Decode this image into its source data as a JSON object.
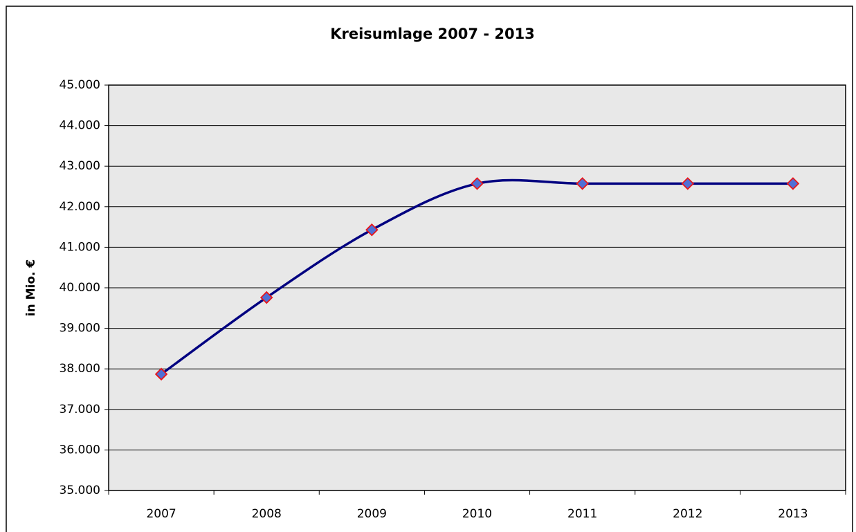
{
  "chart_data": {
    "type": "line",
    "title": "Kreisumlage 2007  - 2013",
    "y_label": "in Mio. €",
    "categories": [
      "2007",
      "2008",
      "2009",
      "2010",
      "2011",
      "2012",
      "2013"
    ],
    "series": [
      {
        "name": "Kreisumlage",
        "color": "#000080",
        "marker_fill": "#4f6fd6",
        "marker_edge": "#e8161b",
        "values": [
          37870,
          39760,
          41430,
          42570,
          42570,
          42570,
          42570
        ]
      }
    ],
    "ylim": [
      35000,
      45000
    ],
    "yticks": [
      {
        "value": 35000,
        "label": "35.000"
      },
      {
        "value": 36000,
        "label": "36.000"
      },
      {
        "value": 37000,
        "label": "37.000"
      },
      {
        "value": 38000,
        "label": "38.000"
      },
      {
        "value": 39000,
        "label": "39.000"
      },
      {
        "value": 40000,
        "label": "40.000"
      },
      {
        "value": 41000,
        "label": "41.000"
      },
      {
        "value": 42000,
        "label": "42.000"
      },
      {
        "value": 43000,
        "label": "43.000"
      },
      {
        "value": 44000,
        "label": "44.000"
      },
      {
        "value": 45000,
        "label": "45.000"
      }
    ],
    "grid": true,
    "smooth": true,
    "plot_background": "#e8e8e8"
  }
}
